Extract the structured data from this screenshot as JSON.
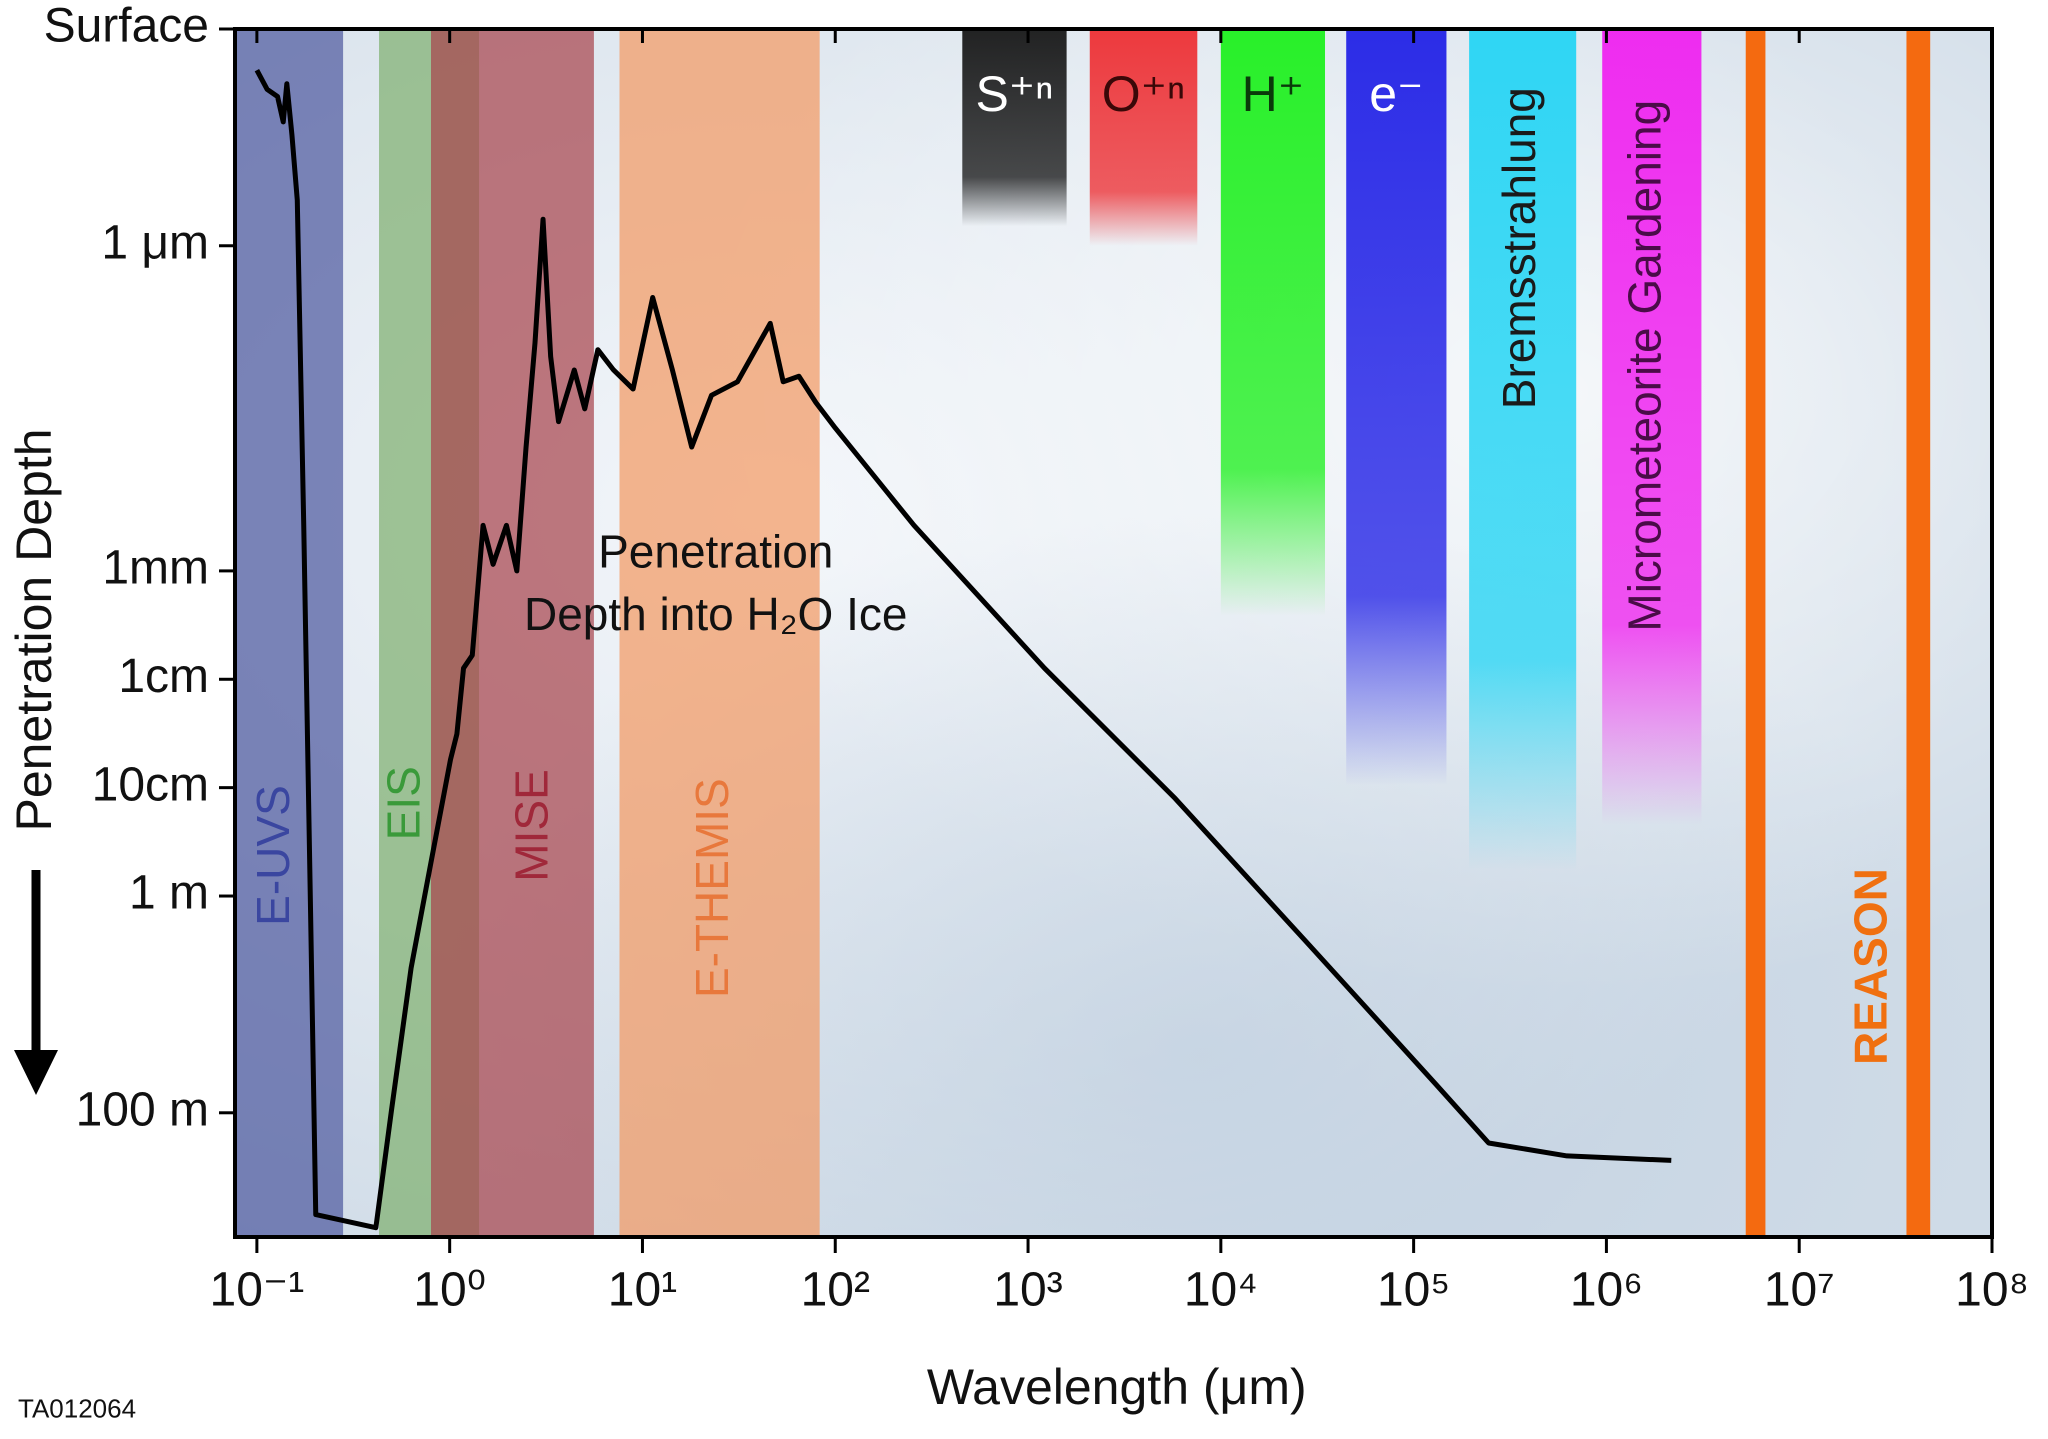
{
  "chart_data": {
    "type": "line",
    "annotation": [
      "Penetration",
      "Depth into H₂O Ice"
    ],
    "x_label": "Wavelength (μm)",
    "y_label": "Penetration Depth",
    "footer": "TA012064",
    "x_log": true,
    "y_log": true,
    "y_inverted": true,
    "xlim": [
      0.077,
      100000000
    ],
    "ylim": [
      1e-08,
      1400
    ],
    "xticks": [
      {
        "value": 0.1,
        "label": "10⁻¹"
      },
      {
        "value": 1,
        "label": "10⁰"
      },
      {
        "value": 10,
        "label": "10¹"
      },
      {
        "value": 100,
        "label": "10²"
      },
      {
        "value": 1000,
        "label": "10³"
      },
      {
        "value": 10000,
        "label": "10⁴"
      },
      {
        "value": 100000,
        "label": "10⁵"
      },
      {
        "value": 1000000,
        "label": "10⁶"
      },
      {
        "value": 10000000,
        "label": "10⁷"
      },
      {
        "value": 100000000,
        "label": "10⁸"
      }
    ],
    "yticks": [
      {
        "value": 1e-08,
        "label": "Surface"
      },
      {
        "value": 1e-06,
        "label": "1 μm"
      },
      {
        "value": 0.001,
        "label": "1mm"
      },
      {
        "value": 0.01,
        "label": "1cm"
      },
      {
        "value": 0.1,
        "label": "10cm"
      },
      {
        "value": 1,
        "label": "1 m"
      },
      {
        "value": 100,
        "label": "100 m"
      }
    ],
    "color": "#000000",
    "x": [
      0.1,
      0.113,
      0.128,
      0.137,
      0.143,
      0.152,
      0.162,
      0.175,
      0.19,
      0.202,
      0.414,
      0.499,
      0.631,
      0.798,
      1.01,
      1.09,
      1.18,
      1.31,
      1.49,
      1.68,
      1.97,
      2.23,
      2.49,
      2.77,
      3.05,
      3.34,
      3.67,
      4.43,
      5.02,
      5.87,
      7.08,
      8.94,
      11.3,
      14.3,
      18.0,
      22.8,
      31.1,
      46.0,
      53.7,
      64.8,
      79.4,
      100,
      256,
      1217,
      5800,
      27500,
      131000,
      245000,
      624000,
      2170000
    ],
    "values": [
      2.4e-08,
      3.6e-08,
      4.2e-08,
      7.2e-08,
      3.2e-08,
      9.5e-08,
      3.8e-07,
      0.00038,
      1.5,
      870,
      1150,
      95,
      4.6,
      0.5,
      0.055,
      0.032,
      0.0079,
      0.006,
      0.00038,
      0.00087,
      0.00038,
      0.001,
      7.2e-05,
      7.9e-06,
      5.7e-07,
      1.05e-05,
      4.2e-05,
      1.4e-05,
      3.2e-05,
      9.1e-06,
      1.4e-05,
      2.1e-05,
      3e-06,
      1.4e-05,
      7.2e-05,
      2.4e-05,
      1.8e-05,
      5.2e-06,
      1.8e-05,
      1.6e-05,
      2.8e-05,
      4.8e-05,
      0.00038,
      0.0079,
      0.126,
      2.6,
      55,
      190,
      250,
      275
    ],
    "bands": [
      {
        "name": "E-UVS",
        "color": "#4f5aa0",
        "label_color": "#3a46a0",
        "ranges": [
          [
            0.077,
            0.28
          ]
        ]
      },
      {
        "name": "EIS",
        "color": "#7fb070",
        "label_color": "#3a9a3a",
        "ranges": [
          [
            0.43,
            1.42
          ]
        ]
      },
      {
        "name": "MISE",
        "color": "#a8454e",
        "label_color": "#a0283a",
        "ranges": [
          [
            0.8,
            5.6
          ]
        ]
      },
      {
        "name": "E-THEMIS",
        "color": "#f39a64",
        "label_color": "#e8783c",
        "ranges": [
          [
            7.6,
            83
          ]
        ]
      },
      {
        "name": "S⁺ⁿ",
        "color": "#111111",
        "label_color": "#ffffff",
        "ranges": [
          [
            456,
            1585
          ]
        ],
        "depth": 6.6e-07
      },
      {
        "name": "O⁺ⁿ",
        "color": "#ee2a2e",
        "label_color": "#3a0808",
        "ranges": [
          [
            2090,
            7550
          ]
        ],
        "depth": 1e-06
      },
      {
        "name": "H⁺",
        "color": "#18f018",
        "label_color": "#0a3a0a",
        "ranges": [
          [
            10000,
            34700
          ]
        ],
        "depth": 0.0026
      },
      {
        "name": "e⁻",
        "color": "#1c1ce6",
        "label_color": "#ffffff",
        "ranges": [
          [
            44700,
            148000
          ]
        ],
        "depth": 0.095
      },
      {
        "name": "Bremsstrahlung",
        "color": "#20d4f4",
        "label_color": "#1a1a1a",
        "ranges": [
          [
            194000,
            697000
          ]
        ],
        "depth": 0.58
      },
      {
        "name": "Micrometeorite Gardening",
        "color": "#f01cf0",
        "label_color": "#4a0c48",
        "ranges": [
          [
            951000,
            3110000
          ]
        ],
        "depth": 0.22
      },
      {
        "name": "REASON",
        "color": "#f46a10",
        "label_color": "#f07010",
        "ranges": [
          [
            5280000,
            6680000
          ],
          [
            36000000,
            47800000
          ]
        ]
      }
    ]
  }
}
